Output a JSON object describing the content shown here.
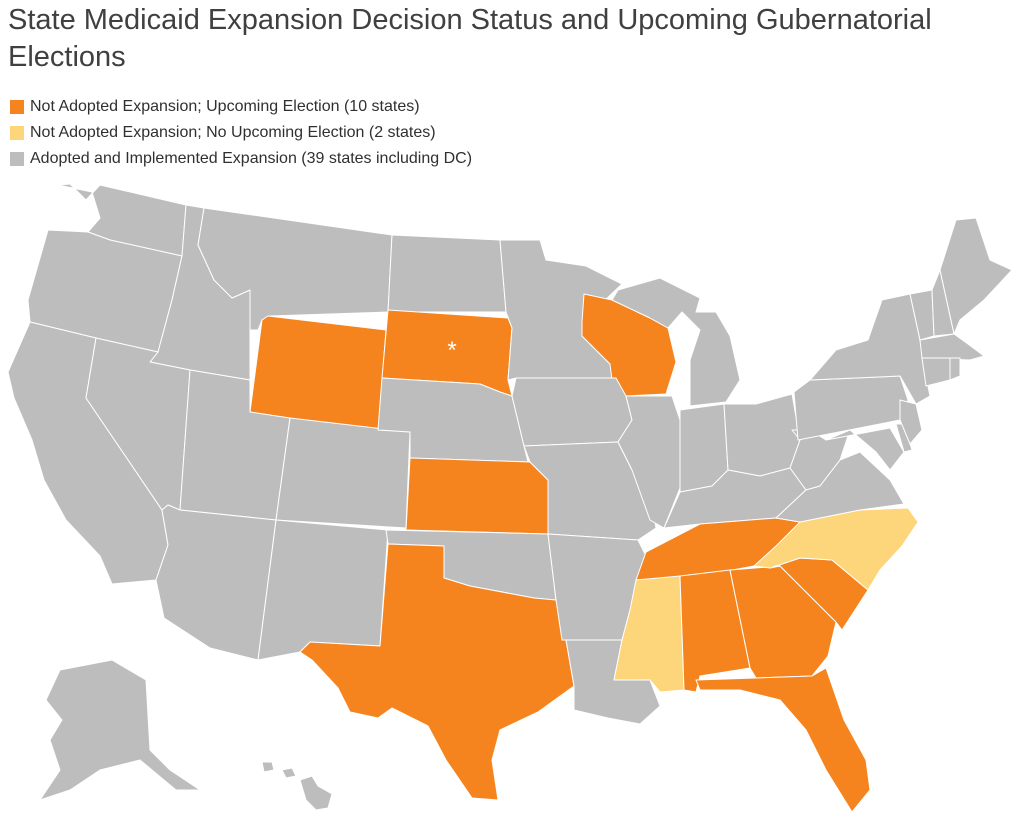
{
  "title": "State Medicaid Expansion Decision Status and Upcoming Gubernatorial Elections",
  "colors": {
    "upcoming": "#f5841f",
    "no_upcoming": "#fdd57a",
    "adopted": "#bdbdbd"
  },
  "legend": [
    {
      "label": "Not Adopted Expansion; Upcoming Election (10 states)",
      "category": "upcoming"
    },
    {
      "label": "Not Adopted Expansion; No Upcoming Election (2 states)",
      "category": "no_upcoming"
    },
    {
      "label": "Adopted and Implemented Expansion (39 states including DC)",
      "category": "adopted"
    }
  ],
  "state_status": {
    "wyoming": "upcoming",
    "south-dakota": "upcoming",
    "wisconsin": "upcoming",
    "kansas": "upcoming",
    "texas": "upcoming",
    "tennessee": "upcoming",
    "alabama": "upcoming",
    "georgia": "upcoming",
    "south-carolina": "upcoming",
    "florida": "upcoming",
    "mississippi": "no_upcoming",
    "north-carolina": "no_upcoming"
  },
  "marker": "*"
}
